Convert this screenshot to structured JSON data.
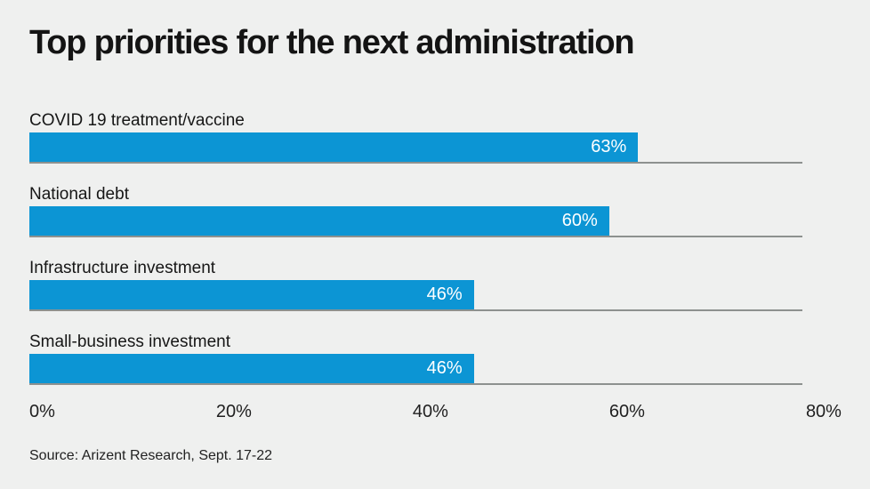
{
  "title": "Top priorities for the next administration",
  "source": "Source: Arizent Research, Sept. 17-22",
  "chart_data": {
    "type": "bar",
    "orientation": "horizontal",
    "title": "Top priorities for the next administration",
    "categories": [
      "COVID 19 treatment/vaccine",
      "National debt",
      "Infrastructure investment",
      "Small-business investment"
    ],
    "values": [
      63,
      60,
      46,
      46
    ],
    "value_labels": [
      "63%",
      "60%",
      "46%",
      "46%"
    ],
    "x_ticks": [
      "0%",
      "20%",
      "40%",
      "60%",
      "80%"
    ],
    "xlim": [
      0,
      80
    ],
    "xmax": 80,
    "grid": "baseline-rules-per-bar",
    "legend": "none",
    "colors": {
      "bar": "#0c95d4",
      "background": "#eff0ef",
      "rule_line": "#8d918f",
      "value_text": "#ffffff",
      "text": "#161616"
    },
    "source_note": "Source: Arizent Research, Sept. 17-22"
  }
}
